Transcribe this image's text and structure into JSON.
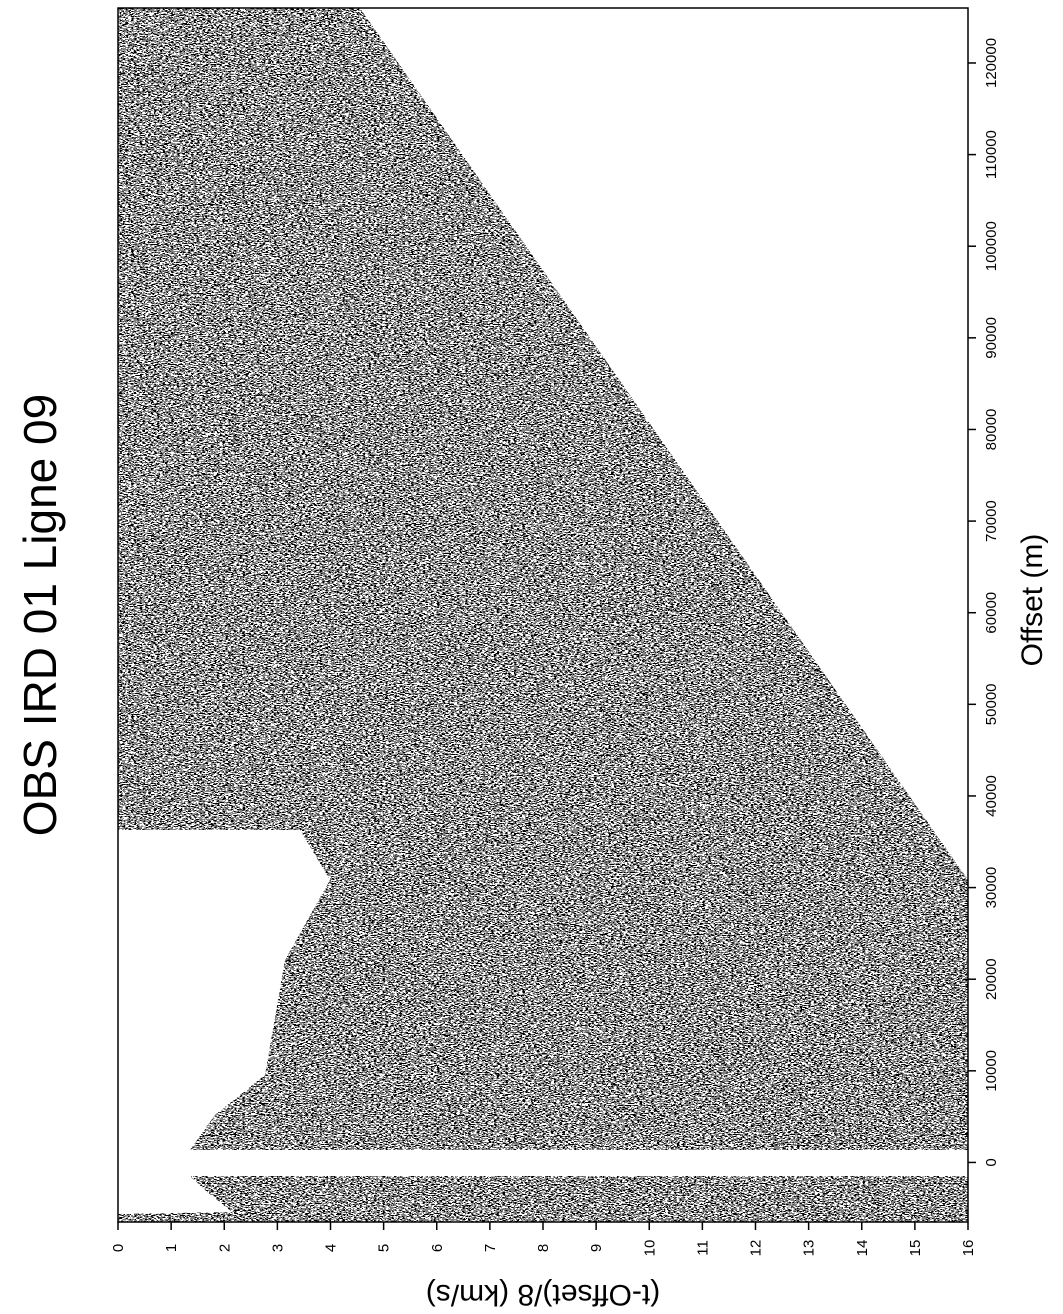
{
  "chart_data": {
    "type": "seismic",
    "title": "OBS IRD 01 Ligne 09",
    "x_label": "Offset (m)",
    "y_label": "(t-Offset)/8 (km/s)",
    "xlim": [
      -6500,
      126000
    ],
    "xticks": [
      0,
      10000,
      20000,
      30000,
      40000,
      50000,
      60000,
      70000,
      80000,
      90000,
      100000,
      110000,
      120000
    ],
    "ylim": [
      0,
      16
    ],
    "yticks": [
      0,
      1,
      2,
      3,
      4,
      5,
      6,
      7,
      8,
      9,
      10,
      11,
      12,
      13,
      14,
      15,
      16
    ],
    "color": "#000000"
  }
}
